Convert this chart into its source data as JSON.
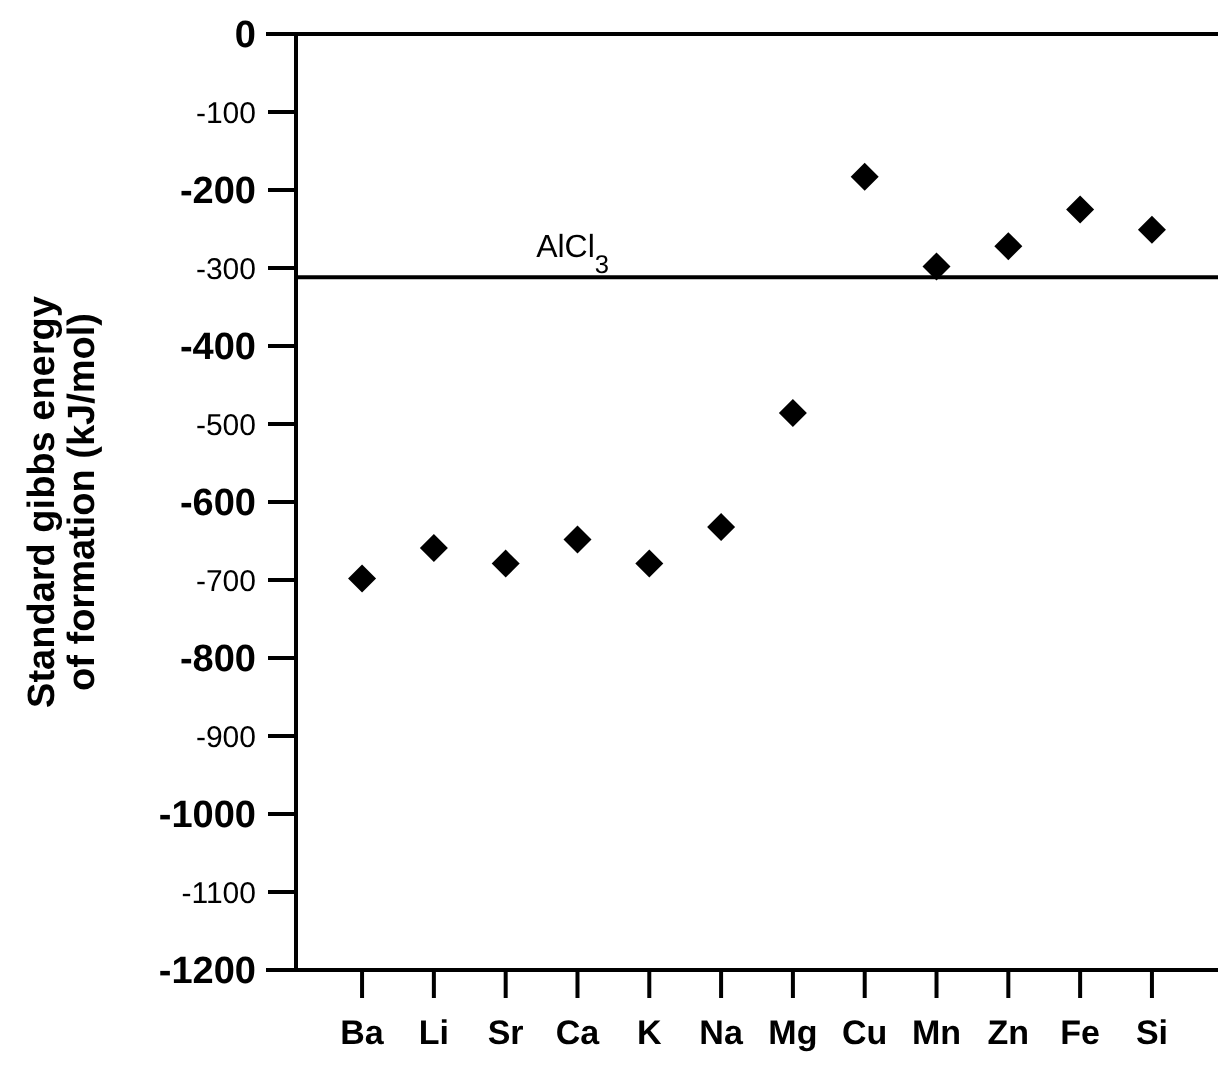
{
  "chart_data": {
    "type": "scatter",
    "ylabel": "Standard gibbs energy of formation (kJ/mol)",
    "categories": [
      "Ba",
      "Li",
      "Sr",
      "Ca",
      "K",
      "Na",
      "Mg",
      "Cu",
      "Mn",
      "Zn",
      "Fe",
      "Si"
    ],
    "series": [
      {
        "color": "#000000",
        "values": [
          -698,
          -659,
          -679,
          -648,
          -679,
          -632,
          -486,
          -183,
          -298,
          -272,
          -225,
          -251
        ]
      }
    ],
    "ylim": [
      -1200,
      0
    ],
    "yticks": [
      0,
      -100,
      -200,
      -300,
      -400,
      -500,
      -600,
      -700,
      -800,
      -900,
      -1000,
      -1100,
      -1200
    ],
    "marker": "diamond",
    "ref_lines": [
      {
        "axis": "y",
        "value": -312,
        "label": "AlCl$_{3}$",
        "color": "#000000"
      }
    ]
  }
}
